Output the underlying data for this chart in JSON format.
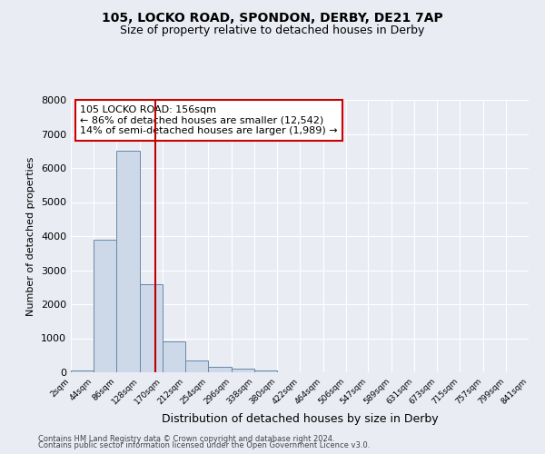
{
  "title1": "105, LOCKO ROAD, SPONDON, DERBY, DE21 7AP",
  "title2": "Size of property relative to detached houses in Derby",
  "xlabel": "Distribution of detached houses by size in Derby",
  "ylabel": "Number of detached properties",
  "footer1": "Contains HM Land Registry data © Crown copyright and database right 2024.",
  "footer2": "Contains public sector information licensed under the Open Government Licence v3.0.",
  "property_label": "105 LOCKO ROAD: 156sqm",
  "annotation_line1": "← 86% of detached houses are smaller (12,542)",
  "annotation_line2": "14% of semi-detached houses are larger (1,989) →",
  "bar_edges": [
    2,
    44,
    86,
    128,
    170,
    212,
    254,
    296,
    338,
    380,
    422,
    464,
    506,
    547,
    589,
    631,
    673,
    715,
    757,
    799,
    841
  ],
  "bar_heights": [
    50,
    3900,
    6500,
    2600,
    900,
    350,
    150,
    100,
    60,
    0,
    0,
    0,
    0,
    0,
    0,
    0,
    0,
    0,
    0,
    0
  ],
  "bar_color": "#cdd8e8",
  "bar_edge_color": "#6688aa",
  "vline_x": 156,
  "vline_color": "#bb0000",
  "ylim": [
    0,
    8000
  ],
  "yticks": [
    0,
    1000,
    2000,
    3000,
    4000,
    5000,
    6000,
    7000,
    8000
  ],
  "annotation_box_color": "#cc0000",
  "bg_color": "#eaecf4",
  "plot_bg_color": "#eaecf4",
  "grid_color": "#ffffff",
  "title1_fontsize": 10,
  "title2_fontsize": 9,
  "ylabel_fontsize": 8,
  "xlabel_fontsize": 9
}
